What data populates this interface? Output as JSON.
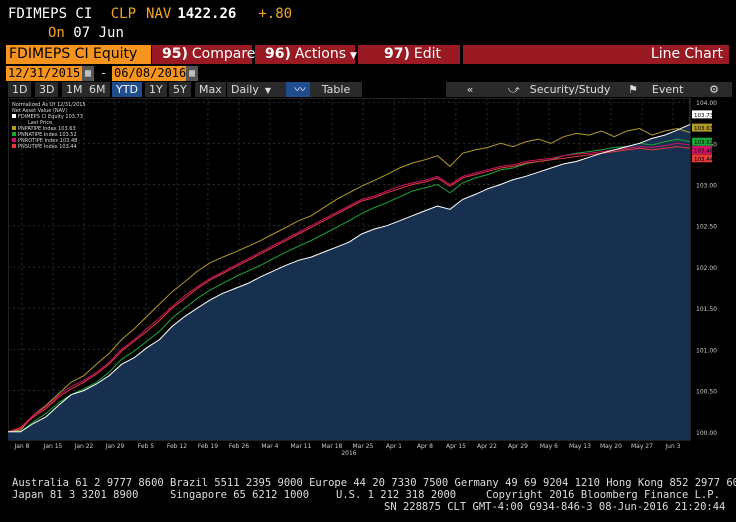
{
  "header": {
    "ticker": "FDIMEPS CI",
    "currency": "CLP",
    "field": "NAV",
    "price": "1422.26",
    "change": "+.80",
    "on_label": "On",
    "on_date": "07 Jun"
  },
  "toolbar": {
    "security": "FDIMEPS CI Equity",
    "compare_num": "95)",
    "compare": "Compare",
    "actions_num": "96)",
    "actions": "Actions",
    "edit_num": "97)",
    "edit": "Edit",
    "chart_type": "Line Chart"
  },
  "dates": {
    "start": "12/31/2015",
    "sep": "-",
    "end": "06/08/2016"
  },
  "ranges": [
    "1D",
    "3D",
    "1M",
    "6M",
    "YTD",
    "1Y",
    "5Y",
    "Max"
  ],
  "selected_range": "YTD",
  "frequency": "Daily",
  "table_label": "Table",
  "security_study": "Security/Study",
  "event_label": "Event",
  "colors": {
    "background": "#000000",
    "area_fill": "#17304f",
    "fdimeps": "#ffffff",
    "pnpatipe": "#b09a28",
    "pnnatipe": "#19a838",
    "pnrotipe": "#d0106a",
    "pnsutipe": "#e83a3a",
    "grid": "#2c2c2c"
  },
  "chart_data": {
    "type": "line",
    "legend": {
      "title_lines": [
        "Normalized As Of 12/31/2015",
        "Net Asset Value (NAV)"
      ],
      "subtitle": "Last Price",
      "placement": "top-left"
    },
    "x_ticks": [
      "Jan 8",
      "Jan 15",
      "Jan 22",
      "Jan 29",
      "Feb 5",
      "Feb 12",
      "Feb 19",
      "Feb 26",
      "Mar 4",
      "Mar 11",
      "Mar 18",
      "Mar 25",
      "Apr 1",
      "Apr 8",
      "Apr 15",
      "Apr 22",
      "Apr 29",
      "May 6",
      "May 13",
      "May 20",
      "May 27",
      "Jun 3"
    ],
    "x_year": "2016",
    "y_ticks": [
      "100.00",
      "100.50",
      "101.00",
      "101.50",
      "102.00",
      "102.50",
      "103.00",
      "103.50",
      "104.00"
    ],
    "ylim": [
      99.9,
      104.05
    ],
    "grid": true,
    "series": [
      {
        "name": "FDIMEPS CI Equity",
        "legend": "FDIMEPS CI Equity 103.73",
        "last": "103.73",
        "color": "#ffffff",
        "values": [
          100.0,
          100.0,
          100.1,
          100.18,
          100.32,
          100.45,
          100.5,
          100.58,
          100.68,
          100.82,
          100.9,
          101.02,
          101.12,
          101.28,
          101.4,
          101.5,
          101.6,
          101.68,
          101.74,
          101.8,
          101.88,
          101.95,
          102.02,
          102.08,
          102.12,
          102.18,
          102.24,
          102.3,
          102.4,
          102.46,
          102.5,
          102.56,
          102.62,
          102.68,
          102.74,
          102.7,
          102.82,
          102.88,
          102.95,
          103.0,
          103.06,
          103.1,
          103.15,
          103.2,
          103.25,
          103.28,
          103.33,
          103.38,
          103.42,
          103.46,
          103.5,
          103.56,
          103.6,
          103.66,
          103.73
        ]
      },
      {
        "name": "PNPATIPE Index",
        "legend": "PNPATIPE Index 103.63",
        "last": "103.63",
        "color": "#b09a28",
        "values": [
          100.0,
          100.02,
          100.2,
          100.32,
          100.46,
          100.6,
          100.68,
          100.82,
          100.95,
          101.12,
          101.25,
          101.4,
          101.55,
          101.7,
          101.82,
          101.95,
          102.05,
          102.12,
          102.18,
          102.25,
          102.32,
          102.4,
          102.48,
          102.56,
          102.62,
          102.72,
          102.82,
          102.9,
          102.98,
          103.05,
          103.12,
          103.2,
          103.26,
          103.3,
          103.35,
          103.22,
          103.38,
          103.42,
          103.45,
          103.5,
          103.46,
          103.52,
          103.55,
          103.5,
          103.58,
          103.62,
          103.6,
          103.65,
          103.58,
          103.65,
          103.68,
          103.6,
          103.65,
          103.68,
          103.63
        ]
      },
      {
        "name": "PNNATIPE Index",
        "legend": "PNNATIPE Index 103.52",
        "last": "103.52",
        "color": "#19a838",
        "values": [
          100.0,
          100.0,
          100.12,
          100.22,
          100.35,
          100.45,
          100.52,
          100.6,
          100.72,
          100.88,
          100.98,
          101.1,
          101.22,
          101.38,
          101.5,
          101.62,
          101.72,
          101.8,
          101.88,
          101.95,
          102.02,
          102.1,
          102.18,
          102.25,
          102.32,
          102.4,
          102.48,
          102.56,
          102.65,
          102.72,
          102.78,
          102.85,
          102.92,
          102.96,
          103.0,
          102.9,
          103.02,
          103.08,
          103.12,
          103.18,
          103.2,
          103.25,
          103.28,
          103.3,
          103.35,
          103.38,
          103.4,
          103.42,
          103.45,
          103.46,
          103.5,
          103.48,
          103.52,
          103.55,
          103.52
        ]
      },
      {
        "name": "PNROTIPE Index",
        "legend": "PNROTIPE Index 103.48",
        "last": "103.48",
        "color": "#d0106a",
        "values": [
          100.0,
          100.05,
          100.2,
          100.3,
          100.44,
          100.55,
          100.62,
          100.72,
          100.84,
          101.0,
          101.12,
          101.25,
          101.38,
          101.52,
          101.65,
          101.76,
          101.86,
          101.94,
          102.02,
          102.1,
          102.18,
          102.26,
          102.34,
          102.42,
          102.5,
          102.58,
          102.66,
          102.74,
          102.82,
          102.86,
          102.92,
          102.98,
          103.02,
          103.05,
          103.1,
          103.0,
          103.1,
          103.14,
          103.18,
          103.22,
          103.24,
          103.28,
          103.3,
          103.32,
          103.35,
          103.37,
          103.38,
          103.4,
          103.42,
          103.44,
          103.46,
          103.45,
          103.47,
          103.5,
          103.48
        ]
      },
      {
        "name": "PNSUTIPE Index",
        "legend": "PNSUTIPE Index 103.44",
        "last": "103.44",
        "color": "#e83a3a",
        "values": [
          100.0,
          100.04,
          100.18,
          100.28,
          100.42,
          100.52,
          100.6,
          100.7,
          100.82,
          100.98,
          101.1,
          101.22,
          101.35,
          101.5,
          101.62,
          101.74,
          101.84,
          101.92,
          102.0,
          102.08,
          102.16,
          102.24,
          102.32,
          102.4,
          102.48,
          102.56,
          102.64,
          102.72,
          102.8,
          102.84,
          102.9,
          102.95,
          103.0,
          103.03,
          103.08,
          102.98,
          103.08,
          103.12,
          103.16,
          103.2,
          103.22,
          103.26,
          103.28,
          103.3,
          103.32,
          103.34,
          103.36,
          103.38,
          103.4,
          103.42,
          103.44,
          103.42,
          103.44,
          103.46,
          103.44
        ]
      }
    ]
  },
  "footer": {
    "line1": "Australia 61 2 9777 8600 Brazil 5511 2395 9000 Europe 44 20 7330 7500 Germany 49 69 9204 1210 Hong Kong 852 2977 6000",
    "line2a": "Japan 81 3 3201 8900",
    "line2b": "Singapore 65 6212 1000",
    "line2c": "U.S. 1 212 318 2000",
    "line2d": "Copyright 2016 Bloomberg Finance L.P.",
    "line3": "SN 228875 CLT  GMT-4:00 G934-846-3 08-Jun-2016 21:20:44"
  }
}
